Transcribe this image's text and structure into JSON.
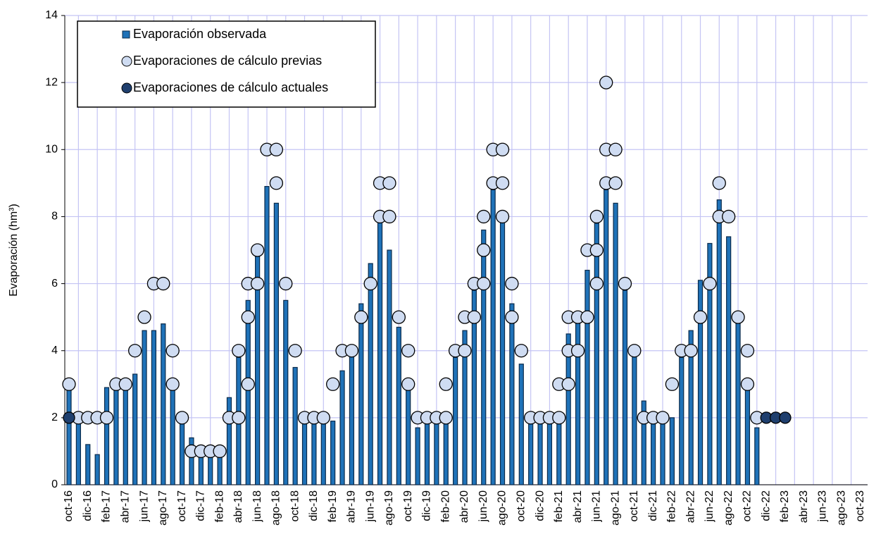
{
  "chart_data": {
    "type": "bar",
    "y_label": "Evaporación (hm³)",
    "categories": [
      "oct-16",
      null,
      "dic-16",
      null,
      "feb-17",
      null,
      "abr-17",
      null,
      "jun-17",
      null,
      "ago-17",
      null,
      "oct-17",
      null,
      "dic-17",
      null,
      "feb-18",
      null,
      "abr-18",
      null,
      "jun-18",
      null,
      "ago-18",
      null,
      "oct-18",
      null,
      "dic-18",
      null,
      "feb-19",
      null,
      "abr-19",
      null,
      "jun-19",
      null,
      "ago-19",
      null,
      "oct-19",
      null,
      "dic-19",
      null,
      "feb-20",
      null,
      "abr-20",
      null,
      "jun-20",
      null,
      "ago-20",
      null,
      "oct-20",
      null,
      "dic-20",
      null,
      "feb-21",
      null,
      "abr-21",
      null,
      "jun-21",
      null,
      "ago-21",
      null,
      "oct-21",
      null,
      "dic-21",
      null,
      "feb-22",
      null,
      "abr-22",
      null,
      "jun-22",
      null,
      "ago-22",
      null,
      "oct-22",
      null,
      "dic-22",
      null,
      "feb-23",
      null,
      "abr-23",
      null,
      "jun-23",
      null,
      "ago-23",
      null,
      "oct-23"
    ],
    "series": [
      {
        "name": "Evaporación observada",
        "color": "#1f72b8",
        "values": [
          2.9,
          2.0,
          1.2,
          0.9,
          2.9,
          2.9,
          2.9,
          3.3,
          4.6,
          4.6,
          4.8,
          3.0,
          2.0,
          1.4,
          1.0,
          0.9,
          1.0,
          2.6,
          3.8,
          5.5,
          6.9,
          8.9,
          8.4,
          5.5,
          3.5,
          2.0,
          1.9,
          1.9,
          1.9,
          3.4,
          3.9,
          5.4,
          6.6,
          7.9,
          7.0,
          4.7,
          2.9,
          1.7,
          1.9,
          1.9,
          1.9,
          3.8,
          4.6,
          5.8,
          7.6,
          8.8,
          7.9,
          5.4,
          3.6,
          1.9,
          1.9,
          1.9,
          1.9,
          4.5,
          4.9,
          6.4,
          7.8,
          8.8,
          8.4,
          5.8,
          3.9,
          2.5,
          1.9,
          1.9,
          2.0,
          3.8,
          4.6,
          6.1,
          7.2,
          8.5,
          7.4,
          4.9,
          2.9,
          1.7,
          null,
          null,
          null,
          null,
          null,
          null,
          null,
          null,
          null,
          null,
          null
        ]
      },
      {
        "name": "Evaporaciones de cálculo previas",
        "color": "#cfdcf2",
        "values": [
          [
            3
          ],
          [
            2
          ],
          [
            2
          ],
          [
            2
          ],
          [
            2
          ],
          [
            3
          ],
          [
            3
          ],
          [
            4
          ],
          [
            5
          ],
          [
            6
          ],
          [
            6
          ],
          [
            3,
            4
          ],
          [
            2
          ],
          [
            1
          ],
          [
            1
          ],
          [
            1
          ],
          [
            1
          ],
          [
            2
          ],
          [
            2,
            4
          ],
          [
            3,
            5,
            6
          ],
          [
            6,
            7
          ],
          [
            10
          ],
          [
            9,
            10
          ],
          [
            6
          ],
          [
            4
          ],
          [
            2
          ],
          [
            2
          ],
          [
            2
          ],
          [
            3
          ],
          [
            4
          ],
          [
            4
          ],
          [
            5
          ],
          [
            6
          ],
          [
            8,
            9
          ],
          [
            8,
            9
          ],
          [
            5
          ],
          [
            3,
            4
          ],
          [
            2
          ],
          [
            2
          ],
          [
            2
          ],
          [
            2,
            3
          ],
          [
            4
          ],
          [
            4,
            5
          ],
          [
            5,
            6
          ],
          [
            6,
            7,
            8
          ],
          [
            9,
            10
          ],
          [
            8,
            9,
            10
          ],
          [
            5,
            6
          ],
          [
            4
          ],
          [
            2
          ],
          [
            2
          ],
          [
            2
          ],
          [
            2,
            3
          ],
          [
            3,
            4,
            5
          ],
          [
            4,
            5
          ],
          [
            5,
            7
          ],
          [
            6,
            7,
            8
          ],
          [
            9,
            10,
            12
          ],
          [
            9,
            10
          ],
          [
            6
          ],
          [
            4
          ],
          [
            2
          ],
          [
            2
          ],
          [
            2
          ],
          [
            3
          ],
          [
            4
          ],
          [
            4
          ],
          [
            5
          ],
          [
            6
          ],
          [
            8,
            9
          ],
          [
            8
          ],
          [
            5
          ],
          [
            3,
            4
          ],
          [
            2
          ],
          [],
          [],
          [],
          [],
          [],
          [],
          [],
          [],
          [],
          [],
          []
        ]
      },
      {
        "name": "Evaporaciones de cálculo actuales",
        "color": "#1f3f6e",
        "values": [
          2,
          null,
          null,
          null,
          null,
          null,
          null,
          null,
          null,
          null,
          null,
          null,
          null,
          null,
          null,
          null,
          null,
          null,
          null,
          null,
          null,
          null,
          null,
          null,
          null,
          null,
          null,
          null,
          null,
          null,
          null,
          null,
          null,
          null,
          null,
          null,
          null,
          null,
          null,
          null,
          null,
          null,
          null,
          null,
          null,
          null,
          null,
          null,
          null,
          null,
          null,
          null,
          null,
          null,
          null,
          null,
          null,
          null,
          null,
          null,
          null,
          null,
          null,
          null,
          null,
          null,
          null,
          null,
          null,
          null,
          null,
          null,
          null,
          null,
          2,
          2,
          2,
          null,
          null,
          null,
          null,
          null,
          null,
          null,
          null
        ]
      }
    ],
    "ylim": [
      0,
      14
    ],
    "yticks": [
      0,
      2,
      4,
      6,
      8,
      10,
      12,
      14
    ],
    "grid": true
  }
}
